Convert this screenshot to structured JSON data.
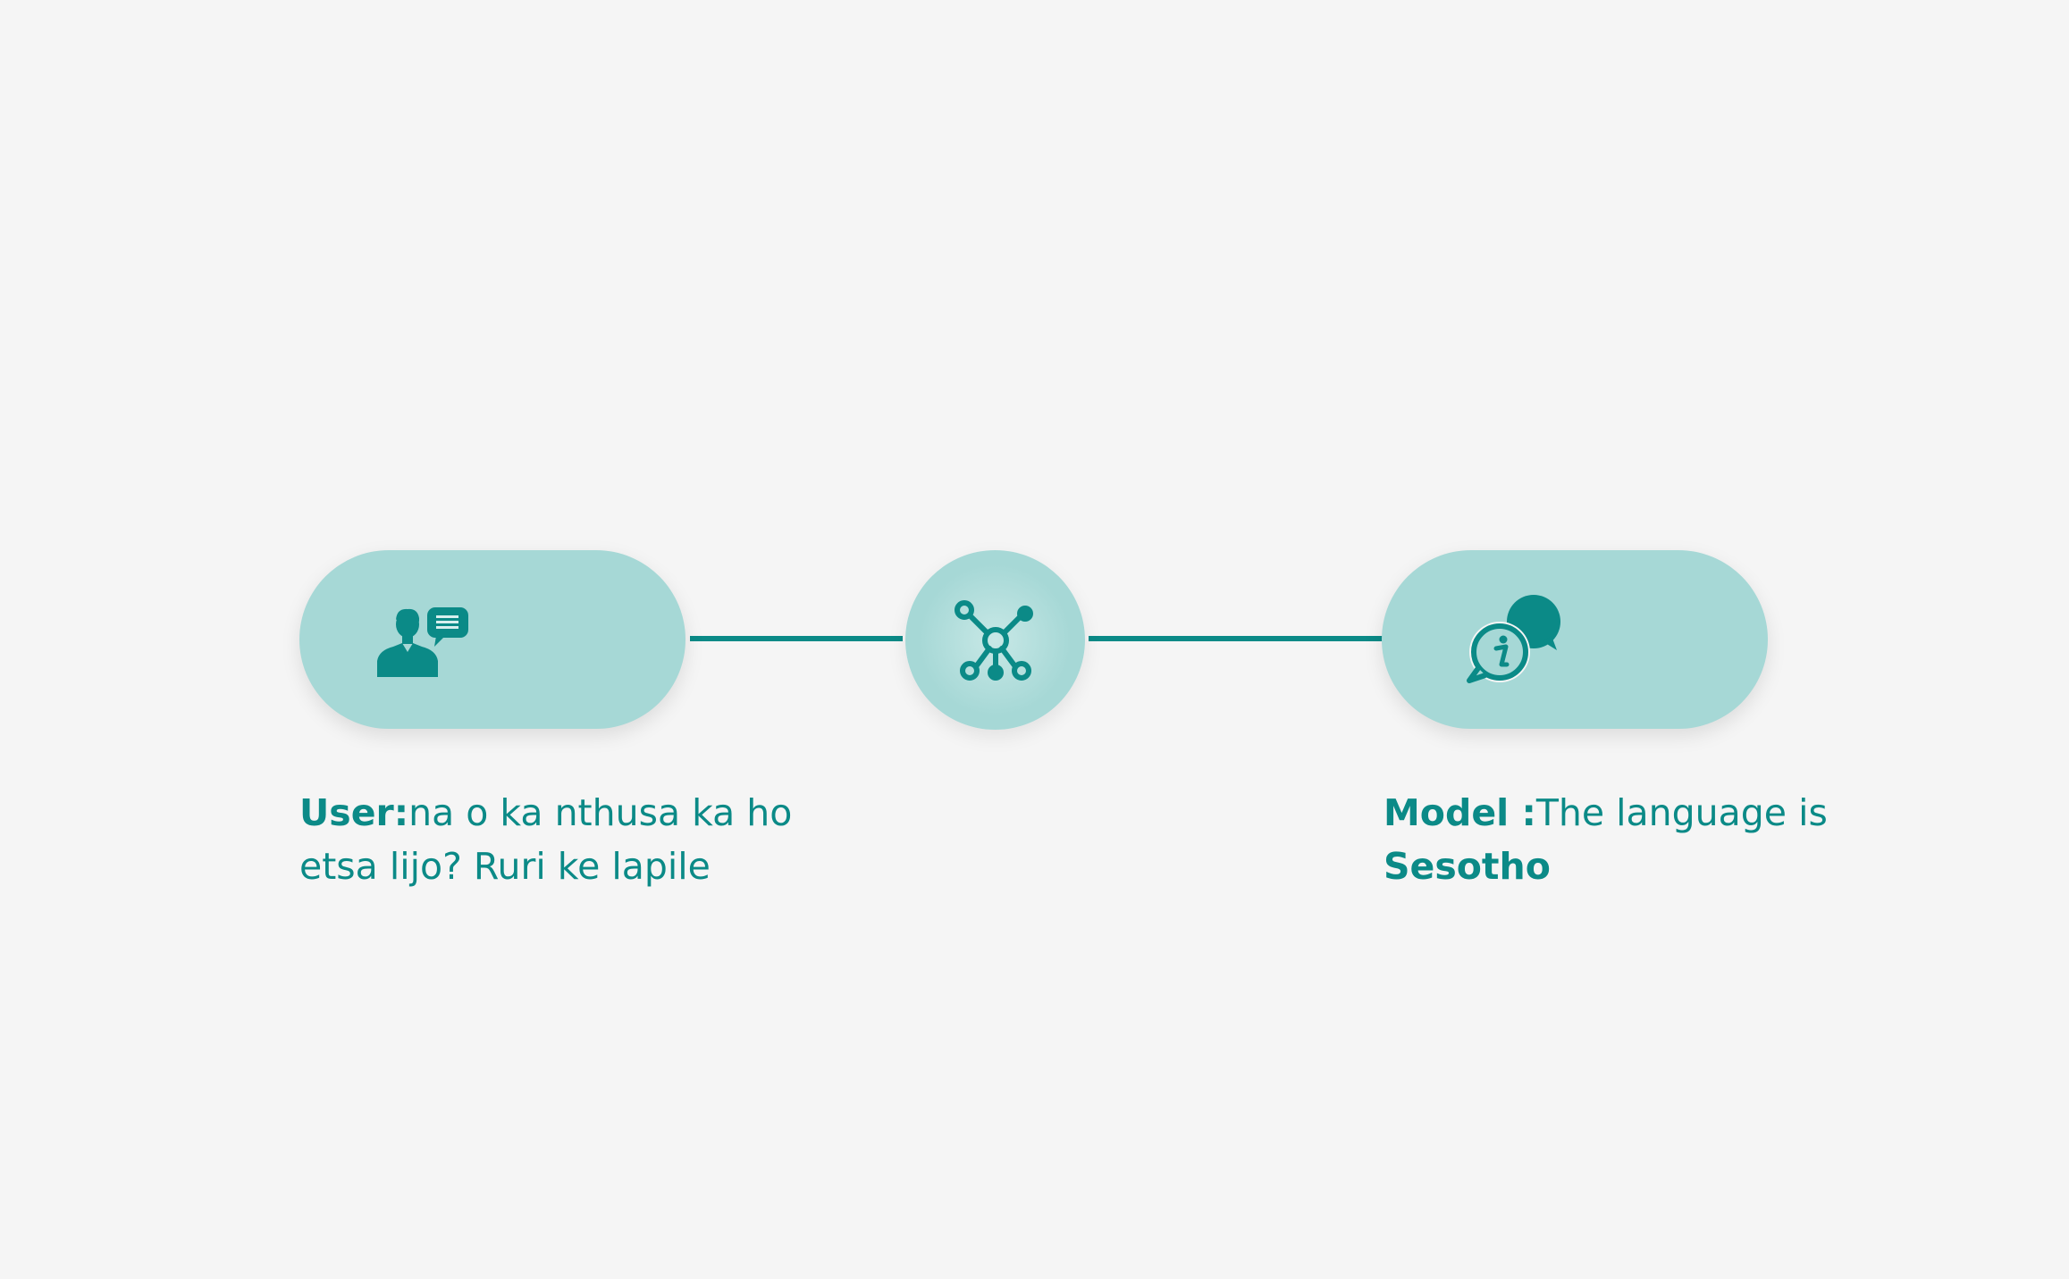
{
  "colors": {
    "teal": "#0b8a87",
    "pill_bg": "#a6d8d6",
    "background": "#f5f5f5"
  },
  "nodes": {
    "user": {
      "icon": "user-chat-icon"
    },
    "model": {
      "icon": "info-chat-icon"
    },
    "hub": {
      "icon": "network-icon"
    }
  },
  "captions": {
    "user": {
      "label": "User:",
      "text": "na o ka nthusa ka ho etsa lijo? Ruri ke lapile"
    },
    "model": {
      "label": "Model :",
      "text": "The language is ",
      "emphasis": "Sesotho"
    }
  }
}
